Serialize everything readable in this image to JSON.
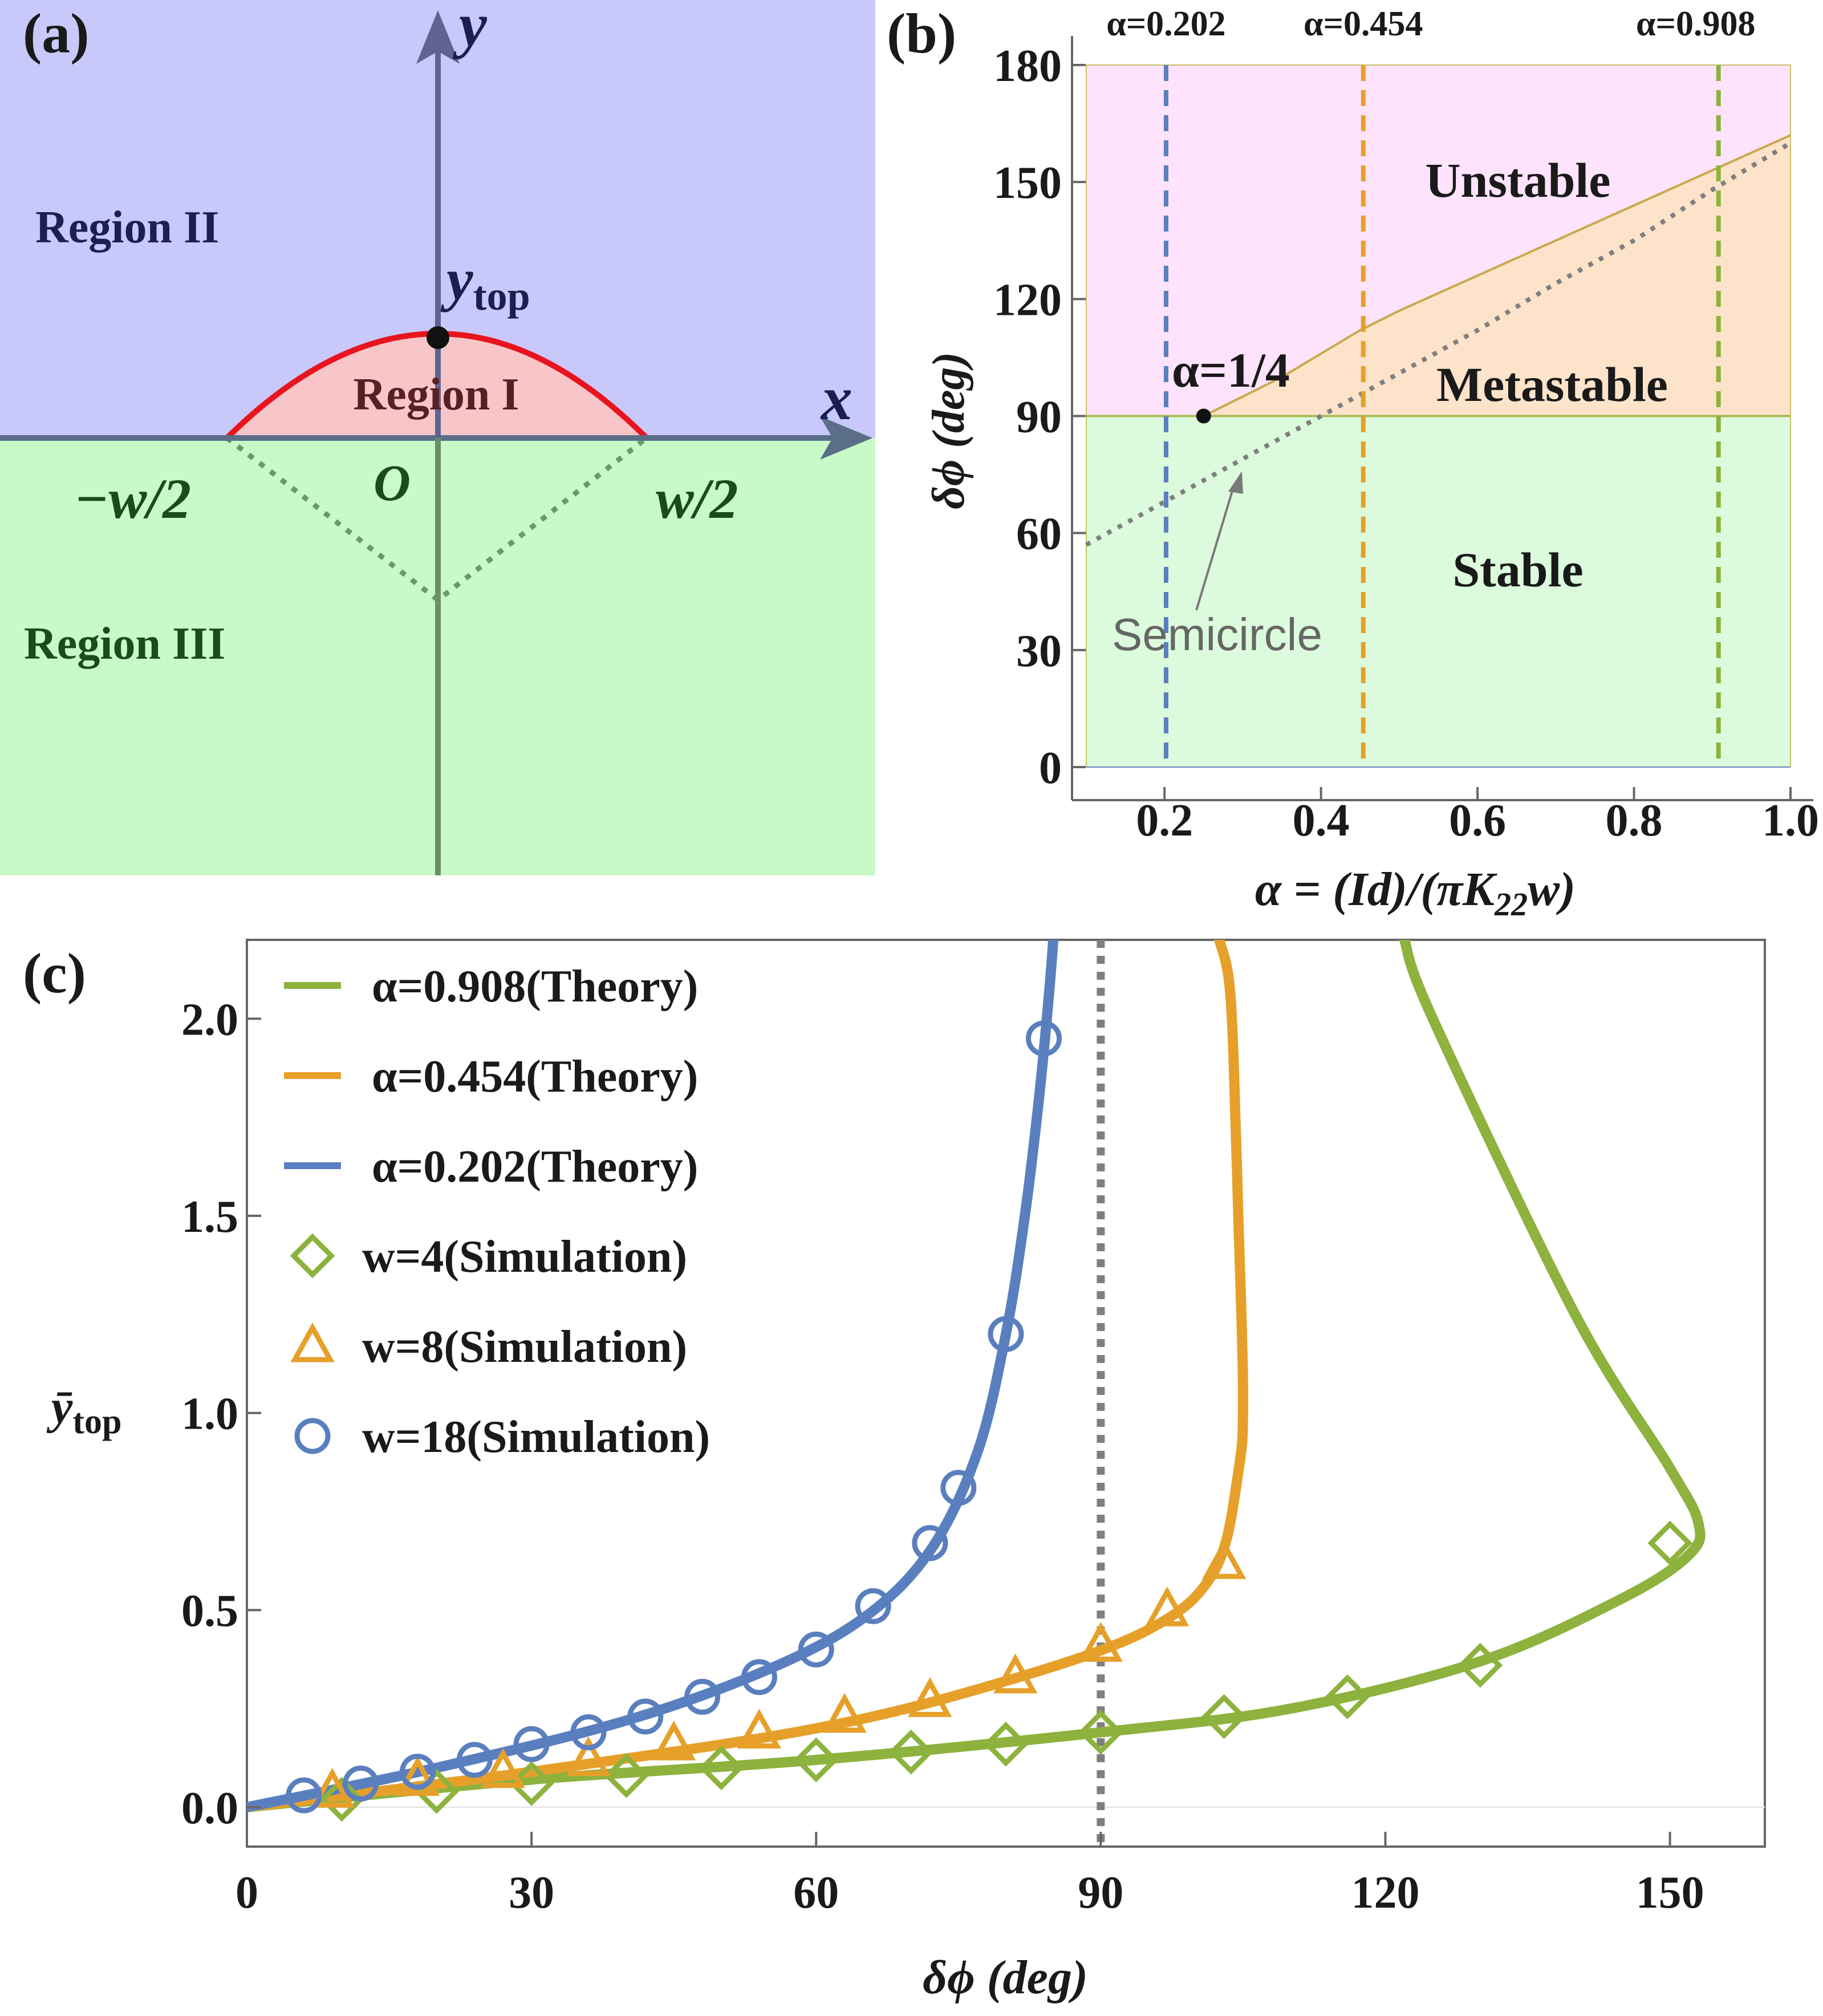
{
  "colors": {
    "blue": "#5a7fbf",
    "orange": "#e6a02a",
    "green": "#8db23d",
    "region2": "#c8c8fa",
    "region3": "#c8fac8",
    "region1": "#f8c6c8",
    "unstable": "#fde3fb",
    "metastable": "#fde3c9",
    "stable": "#dcfbdc"
  },
  "panel_a": {
    "label": "(a)",
    "region2": "Region II",
    "region1": "Region I",
    "region3": "Region III",
    "x_axis": "x",
    "y_axis": "y",
    "ytop_main": "y",
    "ytop_sub": "top",
    "origin": "O",
    "neg_half_w": "−w/2",
    "pos_half_w": "w/2"
  },
  "chart_data": [
    {
      "panel": "(b)",
      "type": "area",
      "xlabel": "α = (Id)/(πK22w)",
      "ylabel": "δϕ (deg)",
      "xlim": [
        0.1,
        1.0
      ],
      "ylim": [
        0,
        180
      ],
      "xticks": [
        "0.2",
        "0.4",
        "0.6",
        "0.8",
        "1.0"
      ],
      "xtick_values": [
        0.2,
        0.4,
        0.6,
        0.8,
        1.0
      ],
      "yticks": [
        "0",
        "30",
        "60",
        "90",
        "120",
        "150",
        "180"
      ],
      "ytick_values": [
        0,
        30,
        60,
        90,
        120,
        150,
        180
      ],
      "regions": [
        "Unstable",
        "Metastable",
        "Stable"
      ],
      "boundary_stable": 90,
      "boundary_unstable": {
        "x": [
          0.25,
          0.3,
          0.35,
          0.4,
          0.45,
          0.5,
          0.6,
          0.7,
          0.8,
          0.9,
          1.0
        ],
        "y": [
          90,
          95,
          100,
          106,
          112,
          117,
          126,
          135,
          144,
          153,
          162
        ]
      },
      "semicircle": {
        "label": "Semicircle",
        "x": [
          0.1,
          0.2,
          0.3,
          0.4,
          0.5,
          0.6,
          0.7,
          0.8,
          0.9,
          1.0
        ],
        "y": [
          57,
          68,
          79,
          90,
          101,
          112,
          124,
          135,
          148,
          160
        ]
      },
      "vertical_lines": [
        {
          "label": "α=0.202",
          "x": 0.202,
          "color": "#5a7fbf"
        },
        {
          "label": "α=0.454",
          "x": 0.454,
          "color": "#e6a02a"
        },
        {
          "label": "α=0.908",
          "x": 0.908,
          "color": "#8db23d"
        }
      ],
      "point": {
        "label": "α=1/4",
        "x": 0.25,
        "y": 90
      }
    },
    {
      "panel": "(c)",
      "type": "line",
      "xlabel": "δϕ (deg)",
      "ylabel_main": "ȳ",
      "ylabel_sub": "top",
      "xlim": [
        0,
        160
      ],
      "ylim": [
        -0.1,
        2.2
      ],
      "xticks": [
        "0",
        "30",
        "60",
        "90",
        "120",
        "150"
      ],
      "xtick_values": [
        0,
        30,
        60,
        90,
        120,
        150
      ],
      "yticks": [
        "0.0",
        "0.5",
        "1.0",
        "1.5",
        "2.0"
      ],
      "ytick_values": [
        0,
        0.5,
        1.0,
        1.5,
        2.0
      ],
      "reference_line_x": 90,
      "theory": [
        {
          "name": "α=0.908(Theory)",
          "color": "#8db23d",
          "x": [
            0,
            30,
            60,
            90,
            110,
            130,
            145,
            152,
            153,
            150,
            140,
            125,
            122
          ],
          "y": [
            0.0,
            0.07,
            0.12,
            0.19,
            0.25,
            0.37,
            0.53,
            0.64,
            0.72,
            0.86,
            1.25,
            2.0,
            2.2
          ]
        },
        {
          "name": "α=0.454(Theory)",
          "color": "#e6a02a",
          "x": [
            0,
            30,
            60,
            80,
            95,
            102,
            104.5,
            105,
            104.5,
            104,
            103.5,
            102.5
          ],
          "y": [
            0.0,
            0.09,
            0.2,
            0.32,
            0.45,
            0.6,
            0.85,
            1.05,
            1.5,
            1.9,
            2.1,
            2.2
          ]
        },
        {
          "name": "α=0.202(Theory)",
          "color": "#5a7fbf",
          "x": [
            0,
            20,
            40,
            55,
            65,
            72,
            77,
            80,
            82,
            83.5,
            84.5,
            85
          ],
          "y": [
            0.0,
            0.1,
            0.22,
            0.35,
            0.48,
            0.65,
            0.9,
            1.2,
            1.5,
            1.8,
            2.05,
            2.2
          ]
        }
      ],
      "simulation": [
        {
          "name": "w=4(Simulation)",
          "marker": "diamond",
          "color": "#8db23d",
          "x": [
            10,
            20,
            30,
            40,
            50,
            60,
            70,
            80,
            90,
            103,
            116,
            130,
            150
          ],
          "y": [
            0.02,
            0.04,
            0.06,
            0.08,
            0.1,
            0.12,
            0.14,
            0.16,
            0.19,
            0.23,
            0.28,
            0.36,
            0.67
          ]
        },
        {
          "name": "w=8(Simulation)",
          "marker": "triangle",
          "color": "#e6a02a",
          "x": [
            9,
            18,
            27,
            36,
            45,
            54,
            63,
            72,
            81,
            90,
            97,
            103
          ],
          "y": [
            0.04,
            0.07,
            0.09,
            0.12,
            0.16,
            0.19,
            0.23,
            0.27,
            0.33,
            0.41,
            0.5,
            0.62
          ]
        },
        {
          "name": "w=18(Simulation)",
          "marker": "circle",
          "color": "#5a7fbf",
          "x": [
            6,
            12,
            18,
            24,
            30,
            36,
            42,
            48,
            54,
            60,
            66,
            72,
            75,
            80,
            84
          ],
          "y": [
            0.03,
            0.06,
            0.09,
            0.12,
            0.16,
            0.19,
            0.23,
            0.28,
            0.33,
            0.4,
            0.51,
            0.67,
            0.81,
            1.2,
            1.95
          ]
        }
      ]
    }
  ]
}
